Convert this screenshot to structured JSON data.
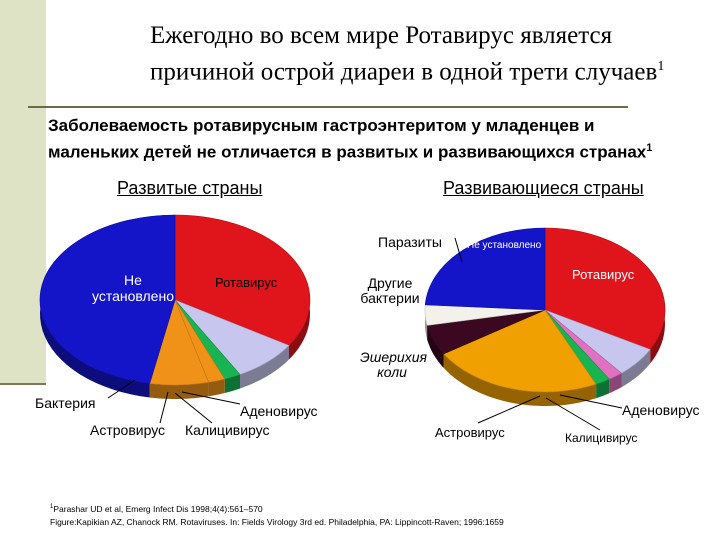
{
  "title_line1": "Ежегодно во всем мире Ротавирус является",
  "title_line2": "причиной острой диареи в одной трети случаев",
  "title_sup": "1",
  "subtitle_line1": "Заболеваемость ротавирусным гастроэнтеритом у младенцев и",
  "subtitle_line2": "маленьких детей не отличается в развитых и развивающихся странах",
  "subtitle_sup": "1",
  "footnote1_sup": "1",
  "footnote1": "Parashar UD et al, Emerg Infect Dis 1998;4(4):561–570",
  "footnote2": "Figure:Kapikian AZ, Chanock RM. Rotaviruses. In: Fields Virology 3rd ed. Philadelphia, PA: Lippincott-Raven; 1996:1659",
  "chart_data": [
    {
      "type": "pie",
      "title": "Развитые страны",
      "categories": [
        "Ротавирус",
        "Калицивирус",
        "Аденовирус",
        "Астровирус",
        "Бактерия",
        "Не установлено"
      ],
      "values": [
        34,
        8,
        2,
        2,
        7,
        47
      ],
      "colors": [
        "#e0141b",
        "#c6c6ee",
        "#18b452",
        "#f09218",
        "#f09218",
        "#1414c8"
      ]
    },
    {
      "type": "pie",
      "title": "Развивающиеся страны",
      "categories": [
        "Ротавирус",
        "Калицивирус",
        "Аденовирус",
        "Астровирус",
        "Эшерихия коли",
        "Другие бактерии",
        "Паразиты",
        "Не установлено"
      ],
      "values": [
        33,
        6,
        2,
        2,
        23,
        6,
        4,
        24
      ],
      "colors": [
        "#e0141b",
        "#c6c6ee",
        "#e070c0",
        "#18b452",
        "#f0a000",
        "#3a0820",
        "#f2f2ea",
        "#1414c8"
      ]
    }
  ]
}
